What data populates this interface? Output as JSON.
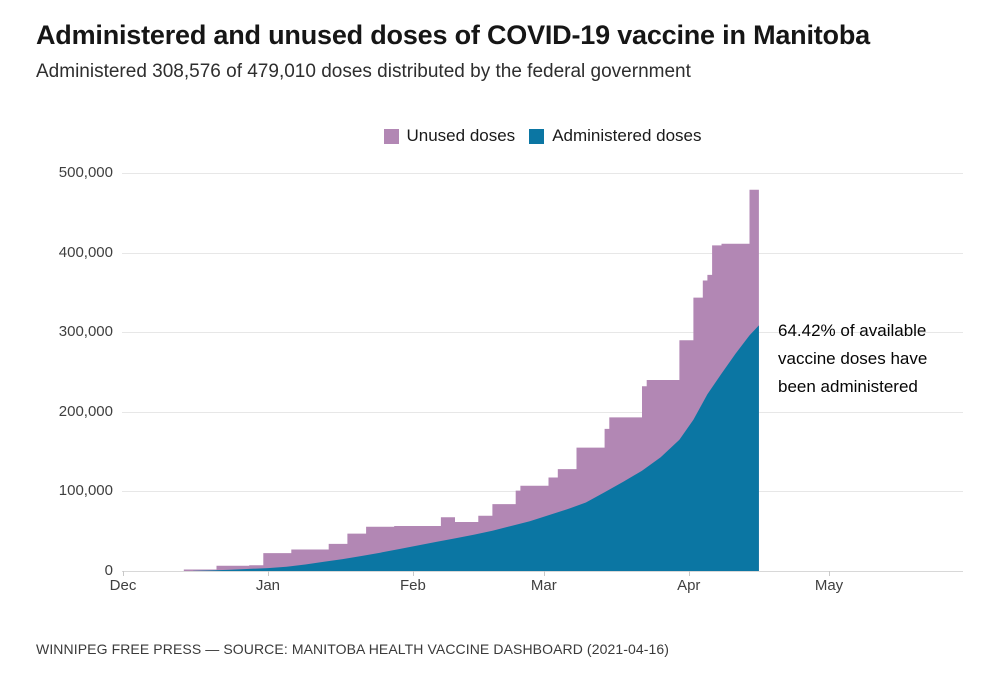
{
  "header": {
    "title": "Administered and unused doses of COVID-19 vaccine in Manitoba",
    "subtitle": "Administered 308,576 of 479,010 doses distributed by the federal government"
  },
  "legend": [
    {
      "label": "Unused doses",
      "color": "#b287b4"
    },
    {
      "label": "Administered doses",
      "color": "#0b76a3"
    }
  ],
  "annotation": {
    "text": "64.42% of available vaccine doses have been administered"
  },
  "footer": {
    "credit": "WINNIPEG FREE PRESS — SOURCE: MANITOBA HEALTH VACCINE DASHBOARD (2021-04-16)"
  },
  "chart_data": {
    "type": "area",
    "stacked": true,
    "title": "Administered and unused doses of COVID-19 vaccine in Manitoba",
    "legend_entries": [
      "Unused doses",
      "Administered doses"
    ],
    "legend_position": "top-center",
    "grid": "horizontal-only",
    "ylim": [
      0,
      500000
    ],
    "y_ticks": [
      0,
      100000,
      200000,
      300000,
      400000,
      500000
    ],
    "x_start": "2020-12-01",
    "x_end": "2021-05-31",
    "x_ticks": [
      {
        "date": "2020-12-01",
        "label": "Dec"
      },
      {
        "date": "2021-01-01",
        "label": "Jan"
      },
      {
        "date": "2021-02-01",
        "label": "Feb"
      },
      {
        "date": "2021-03-01",
        "label": "Mar"
      },
      {
        "date": "2021-04-01",
        "label": "Apr"
      },
      {
        "date": "2021-05-01",
        "label": "May"
      }
    ],
    "totals": {
      "administered": 308576,
      "distributed": 479010,
      "pct_administered": "64.42%"
    },
    "series": [
      {
        "name": "Administered doses",
        "color": "#0b76a3",
        "interpolation": "linear",
        "points": [
          [
            "2020-12-16",
            100
          ],
          [
            "2020-12-20",
            700
          ],
          [
            "2020-12-24",
            1600
          ],
          [
            "2020-12-28",
            2600
          ],
          [
            "2021-01-01",
            3600
          ],
          [
            "2021-01-05",
            5400
          ],
          [
            "2021-01-09",
            8200
          ],
          [
            "2021-01-13",
            11500
          ],
          [
            "2021-01-17",
            15000
          ],
          [
            "2021-01-21",
            18800
          ],
          [
            "2021-01-25",
            23000
          ],
          [
            "2021-01-29",
            27500
          ],
          [
            "2021-02-02",
            32000
          ],
          [
            "2021-02-06",
            36500
          ],
          [
            "2021-02-10",
            41000
          ],
          [
            "2021-02-14",
            45500
          ],
          [
            "2021-02-18",
            50500
          ],
          [
            "2021-02-22",
            56500
          ],
          [
            "2021-02-26",
            62500
          ],
          [
            "2021-03-02",
            70000
          ],
          [
            "2021-03-06",
            77500
          ],
          [
            "2021-03-10",
            86000
          ],
          [
            "2021-03-14",
            99000
          ],
          [
            "2021-03-18",
            112000
          ],
          [
            "2021-03-22",
            126000
          ],
          [
            "2021-03-26",
            143000
          ],
          [
            "2021-03-30",
            165000
          ],
          [
            "2021-04-02",
            190000
          ],
          [
            "2021-04-05",
            222000
          ],
          [
            "2021-04-08",
            248000
          ],
          [
            "2021-04-11",
            273000
          ],
          [
            "2021-04-14",
            296000
          ],
          [
            "2021-04-16",
            308576
          ]
        ]
      },
      {
        "name": "Distributed doses (administered + unused)",
        "color": "#b287b4",
        "interpolation": "step-after",
        "points": [
          [
            "2020-12-14",
            1900
          ],
          [
            "2020-12-21",
            6500
          ],
          [
            "2020-12-28",
            7300
          ],
          [
            "2020-12-31",
            22500
          ],
          [
            "2021-01-06",
            27000
          ],
          [
            "2021-01-14",
            34000
          ],
          [
            "2021-01-18",
            47000
          ],
          [
            "2021-01-22",
            55500
          ],
          [
            "2021-01-28",
            56500
          ],
          [
            "2021-02-07",
            67500
          ],
          [
            "2021-02-10",
            61500
          ],
          [
            "2021-02-15",
            69500
          ],
          [
            "2021-02-18",
            84000
          ],
          [
            "2021-02-23",
            101000
          ],
          [
            "2021-02-24",
            107000
          ],
          [
            "2021-03-02",
            117500
          ],
          [
            "2021-03-04",
            128000
          ],
          [
            "2021-03-08",
            155000
          ],
          [
            "2021-03-14",
            178500
          ],
          [
            "2021-03-15",
            193000
          ],
          [
            "2021-03-22",
            232000
          ],
          [
            "2021-03-23",
            240000
          ],
          [
            "2021-03-30",
            290000
          ],
          [
            "2021-04-02",
            343500
          ],
          [
            "2021-04-04",
            365000
          ],
          [
            "2021-04-05",
            372000
          ],
          [
            "2021-04-06",
            409000
          ],
          [
            "2021-04-08",
            411000
          ],
          [
            "2021-04-14",
            479010
          ],
          [
            "2021-04-16",
            479010
          ]
        ]
      }
    ]
  }
}
